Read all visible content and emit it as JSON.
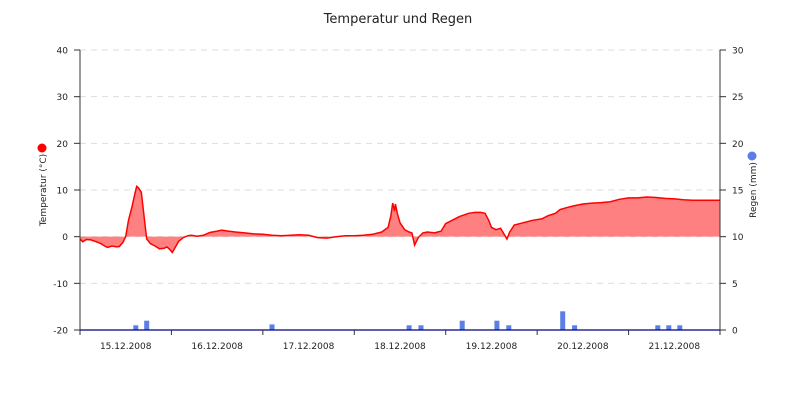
{
  "chart_data": {
    "type": "area",
    "title": "Temperatur und Regen",
    "y_left": {
      "label": "Temperatur (°C)",
      "range": [
        -20,
        40
      ],
      "ticks": [
        "40",
        "30",
        "20",
        "10",
        "0",
        "-10",
        "-20"
      ],
      "color": "#ff0000"
    },
    "y_right": {
      "label": "Regen (mm)",
      "range": [
        0,
        30
      ],
      "ticks": [
        "30",
        "25",
        "20",
        "15",
        "10",
        "5",
        "0"
      ],
      "color": "#4a6fe3"
    },
    "x": {
      "range": [
        14.5,
        21.5
      ],
      "tick_labels": [
        "15.12.2008",
        "16.12.2008",
        "17.12.2008",
        "18.12.2008",
        "19.12.2008",
        "20.12.2008",
        "21.12.2008"
      ]
    },
    "grid": "horizontal-dashed",
    "temperature": {
      "color": "#ff0000",
      "fill": "#ff8080",
      "points": [
        [
          14.5,
          -0.5
        ],
        [
          14.53,
          -1.1
        ],
        [
          14.57,
          -0.6
        ],
        [
          14.62,
          -0.7
        ],
        [
          14.68,
          -1.1
        ],
        [
          14.73,
          -1.5
        ],
        [
          14.77,
          -2.0
        ],
        [
          14.8,
          -2.3
        ],
        [
          14.85,
          -2.0
        ],
        [
          14.9,
          -2.2
        ],
        [
          14.93,
          -2.1
        ],
        [
          14.97,
          -1.2
        ],
        [
          15.0,
          0.0
        ],
        [
          15.03,
          3.5
        ],
        [
          15.07,
          6.5
        ],
        [
          15.1,
          9.2
        ],
        [
          15.12,
          10.8
        ],
        [
          15.14,
          10.5
        ],
        [
          15.17,
          9.5
        ],
        [
          15.2,
          4.5
        ],
        [
          15.23,
          -0.5
        ],
        [
          15.27,
          -1.5
        ],
        [
          15.32,
          -2.0
        ],
        [
          15.37,
          -2.6
        ],
        [
          15.42,
          -2.5
        ],
        [
          15.45,
          -2.2
        ],
        [
          15.48,
          -2.7
        ],
        [
          15.51,
          -3.4
        ],
        [
          15.55,
          -2.0
        ],
        [
          15.58,
          -1.0
        ],
        [
          15.63,
          -0.2
        ],
        [
          15.68,
          0.2
        ],
        [
          15.72,
          0.3
        ],
        [
          15.78,
          0.1
        ],
        [
          15.85,
          0.3
        ],
        [
          15.92,
          0.9
        ],
        [
          16.0,
          1.2
        ],
        [
          16.05,
          1.4
        ],
        [
          16.12,
          1.2
        ],
        [
          16.2,
          1.0
        ],
        [
          16.3,
          0.8
        ],
        [
          16.4,
          0.6
        ],
        [
          16.5,
          0.5
        ],
        [
          16.6,
          0.3
        ],
        [
          16.7,
          0.2
        ],
        [
          16.8,
          0.3
        ],
        [
          16.9,
          0.4
        ],
        [
          17.0,
          0.3
        ],
        [
          17.1,
          -0.2
        ],
        [
          17.2,
          -0.3
        ],
        [
          17.3,
          0.0
        ],
        [
          17.4,
          0.2
        ],
        [
          17.5,
          0.2
        ],
        [
          17.6,
          0.3
        ],
        [
          17.7,
          0.5
        ],
        [
          17.8,
          1.0
        ],
        [
          17.87,
          2.0
        ],
        [
          17.9,
          4.5
        ],
        [
          17.92,
          7.2
        ],
        [
          17.94,
          5.5
        ],
        [
          17.95,
          7.0
        ],
        [
          17.97,
          5.0
        ],
        [
          18.0,
          3.0
        ],
        [
          18.05,
          1.5
        ],
        [
          18.1,
          1.0
        ],
        [
          18.13,
          0.8
        ],
        [
          18.16,
          -1.8
        ],
        [
          18.2,
          -0.2
        ],
        [
          18.25,
          0.8
        ],
        [
          18.3,
          1.0
        ],
        [
          18.38,
          0.8
        ],
        [
          18.45,
          1.2
        ],
        [
          18.5,
          2.8
        ],
        [
          18.57,
          3.5
        ],
        [
          18.65,
          4.3
        ],
        [
          18.75,
          5.0
        ],
        [
          18.82,
          5.2
        ],
        [
          18.88,
          5.2
        ],
        [
          18.93,
          5.0
        ],
        [
          18.97,
          3.5
        ],
        [
          19.0,
          2.0
        ],
        [
          19.05,
          1.5
        ],
        [
          19.1,
          1.8
        ],
        [
          19.13,
          0.8
        ],
        [
          19.17,
          -0.5
        ],
        [
          19.2,
          1.0
        ],
        [
          19.25,
          2.5
        ],
        [
          19.35,
          3.0
        ],
        [
          19.45,
          3.5
        ],
        [
          19.55,
          3.8
        ],
        [
          19.62,
          4.5
        ],
        [
          19.7,
          5.0
        ],
        [
          19.75,
          5.8
        ],
        [
          19.82,
          6.2
        ],
        [
          19.9,
          6.6
        ],
        [
          20.0,
          7.0
        ],
        [
          20.1,
          7.2
        ],
        [
          20.2,
          7.3
        ],
        [
          20.3,
          7.5
        ],
        [
          20.4,
          8.0
        ],
        [
          20.5,
          8.3
        ],
        [
          20.6,
          8.3
        ],
        [
          20.7,
          8.5
        ],
        [
          20.8,
          8.4
        ],
        [
          20.9,
          8.2
        ],
        [
          21.0,
          8.1
        ],
        [
          21.1,
          7.9
        ],
        [
          21.2,
          7.8
        ],
        [
          21.3,
          7.8
        ],
        [
          21.4,
          7.8
        ],
        [
          21.5,
          7.8
        ]
      ]
    },
    "rain": {
      "color": "#5b7fe6",
      "points": [
        [
          15.11,
          0.5
        ],
        [
          15.23,
          1.0
        ],
        [
          16.6,
          0.6
        ],
        [
          18.1,
          0.5
        ],
        [
          18.23,
          0.5
        ],
        [
          18.68,
          1.0
        ],
        [
          19.06,
          1.0
        ],
        [
          19.19,
          0.5
        ],
        [
          19.78,
          2.0
        ],
        [
          19.91,
          0.5
        ],
        [
          20.82,
          0.5
        ],
        [
          20.94,
          0.5
        ],
        [
          21.06,
          0.5
        ]
      ]
    }
  }
}
